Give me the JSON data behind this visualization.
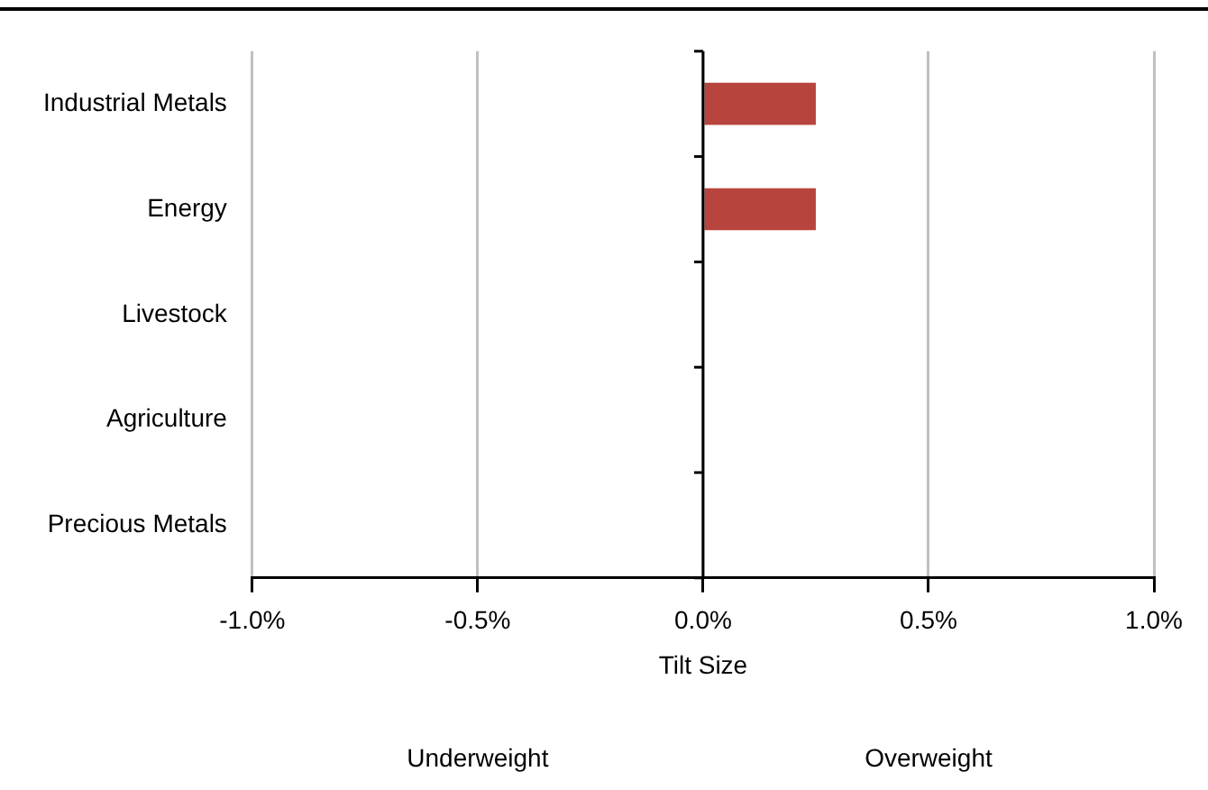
{
  "chart_data": {
    "type": "bar",
    "orientation": "horizontal",
    "xlabel": "Tilt Size",
    "categories": [
      "Industrial Metals",
      "Energy",
      "Livestock",
      "Agriculture",
      "Precious Metals"
    ],
    "values": [
      0.25,
      0.25,
      0,
      0,
      0
    ],
    "color": "#b7443d",
    "xlim": [
      -1.0,
      1.0
    ],
    "xticks": [
      {
        "value": -1.0,
        "label": "-1.0%"
      },
      {
        "value": -0.5,
        "label": "-0.5%"
      },
      {
        "value": 0,
        "label": "0.0%"
      },
      {
        "value": 0.5,
        "label": "0.5%"
      },
      {
        "value": 1.0,
        "label": "1.0%"
      }
    ],
    "grid": "x",
    "legend": false,
    "annotations": [
      "Underweight",
      "Overweight"
    ]
  }
}
